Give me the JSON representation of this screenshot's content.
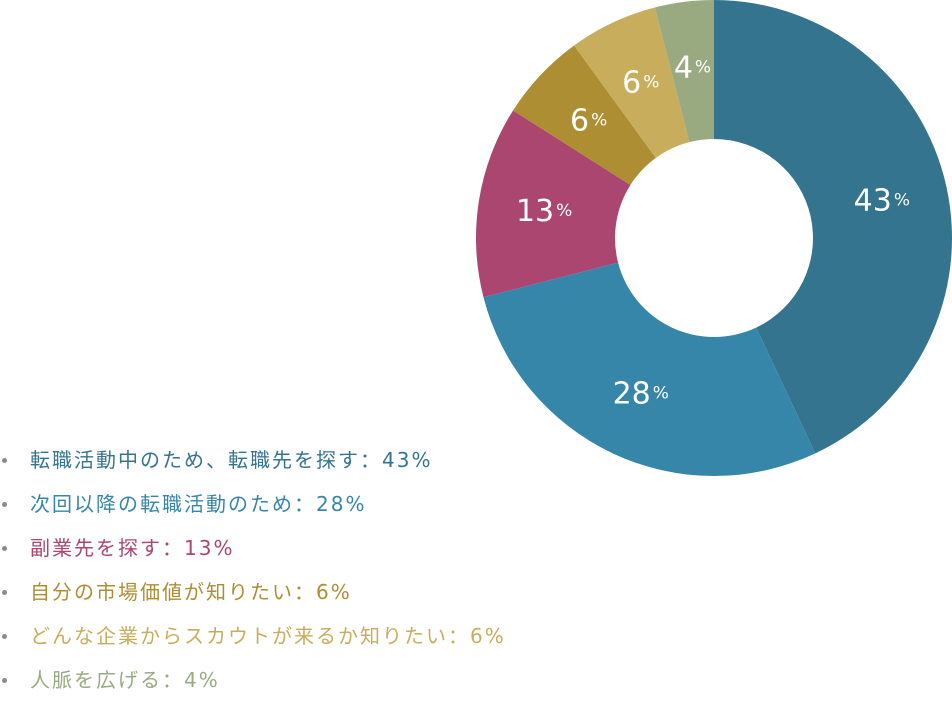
{
  "chart_data": {
    "type": "pie",
    "variant": "donut",
    "slices": [
      {
        "value": 43,
        "label_value": "43",
        "label_unit": "%",
        "color": "#34748f",
        "legend": "転職活動中のため、転職先を探す：43%"
      },
      {
        "value": 28,
        "label_value": "28",
        "label_unit": "%",
        "color": "#3686aa",
        "legend": "次回以降の転職活動のため：28%"
      },
      {
        "value": 13,
        "label_value": "13",
        "label_unit": "%",
        "color": "#aa4670",
        "legend": "副業先を探す：13%"
      },
      {
        "value": 6,
        "label_value": "6",
        "label_unit": "%",
        "color": "#ae8e33",
        "legend": "自分の市場価値が知りたい：6%"
      },
      {
        "value": 6,
        "label_value": "6",
        "label_unit": "%",
        "color": "#c8ae5c",
        "legend": "どんな企業からスカウトが来るか知りたい：6%"
      },
      {
        "value": 4,
        "label_value": "4",
        "label_unit": "%",
        "color": "#9aaa80",
        "legend": "人脈を広げる：4%"
      }
    ],
    "legend_placement": "bottom-left",
    "start_angle": "12 o'clock",
    "direction": "clockwise"
  }
}
